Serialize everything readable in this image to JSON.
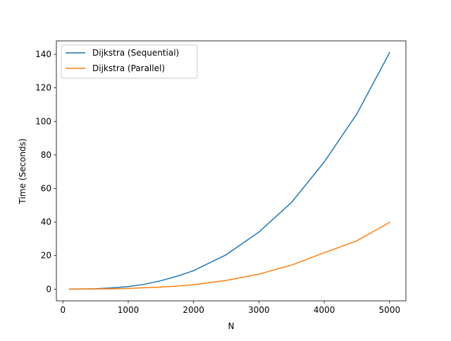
{
  "chart_data": {
    "type": "line",
    "title": "",
    "xlabel": "N",
    "ylabel": "Time (Seconds)",
    "xlim": [
      -100,
      5250
    ],
    "ylim": [
      -7,
      148
    ],
    "xticks": [
      0,
      1000,
      2000,
      3000,
      4000,
      5000
    ],
    "yticks": [
      0,
      20,
      40,
      60,
      80,
      100,
      120,
      140
    ],
    "grid": false,
    "legend_position": "upper-left",
    "series": [
      {
        "name": "Dijkstra (Sequential)",
        "color": "#1f77b4",
        "x": [
          100,
          250,
          500,
          750,
          1000,
          1250,
          1500,
          1750,
          2000,
          2500,
          3000,
          3500,
          4000,
          4500,
          5000
        ],
        "y": [
          0.01,
          0.1,
          0.2,
          0.7,
          1.5,
          2.9,
          5.0,
          7.7,
          11.0,
          20.5,
          34.0,
          51.7,
          75.8,
          104.5,
          141.0
        ]
      },
      {
        "name": "Dijkstra (Parallel)",
        "color": "#ff7f0e",
        "x": [
          100,
          250,
          500,
          750,
          1000,
          1250,
          1500,
          1750,
          2000,
          2500,
          3000,
          3500,
          4000,
          4500,
          5000
        ],
        "y": [
          0.0,
          0.05,
          0.1,
          0.2,
          0.4,
          0.8,
          1.2,
          1.8,
          2.6,
          5.2,
          8.9,
          14.3,
          21.7,
          28.8,
          39.8
        ]
      }
    ]
  }
}
